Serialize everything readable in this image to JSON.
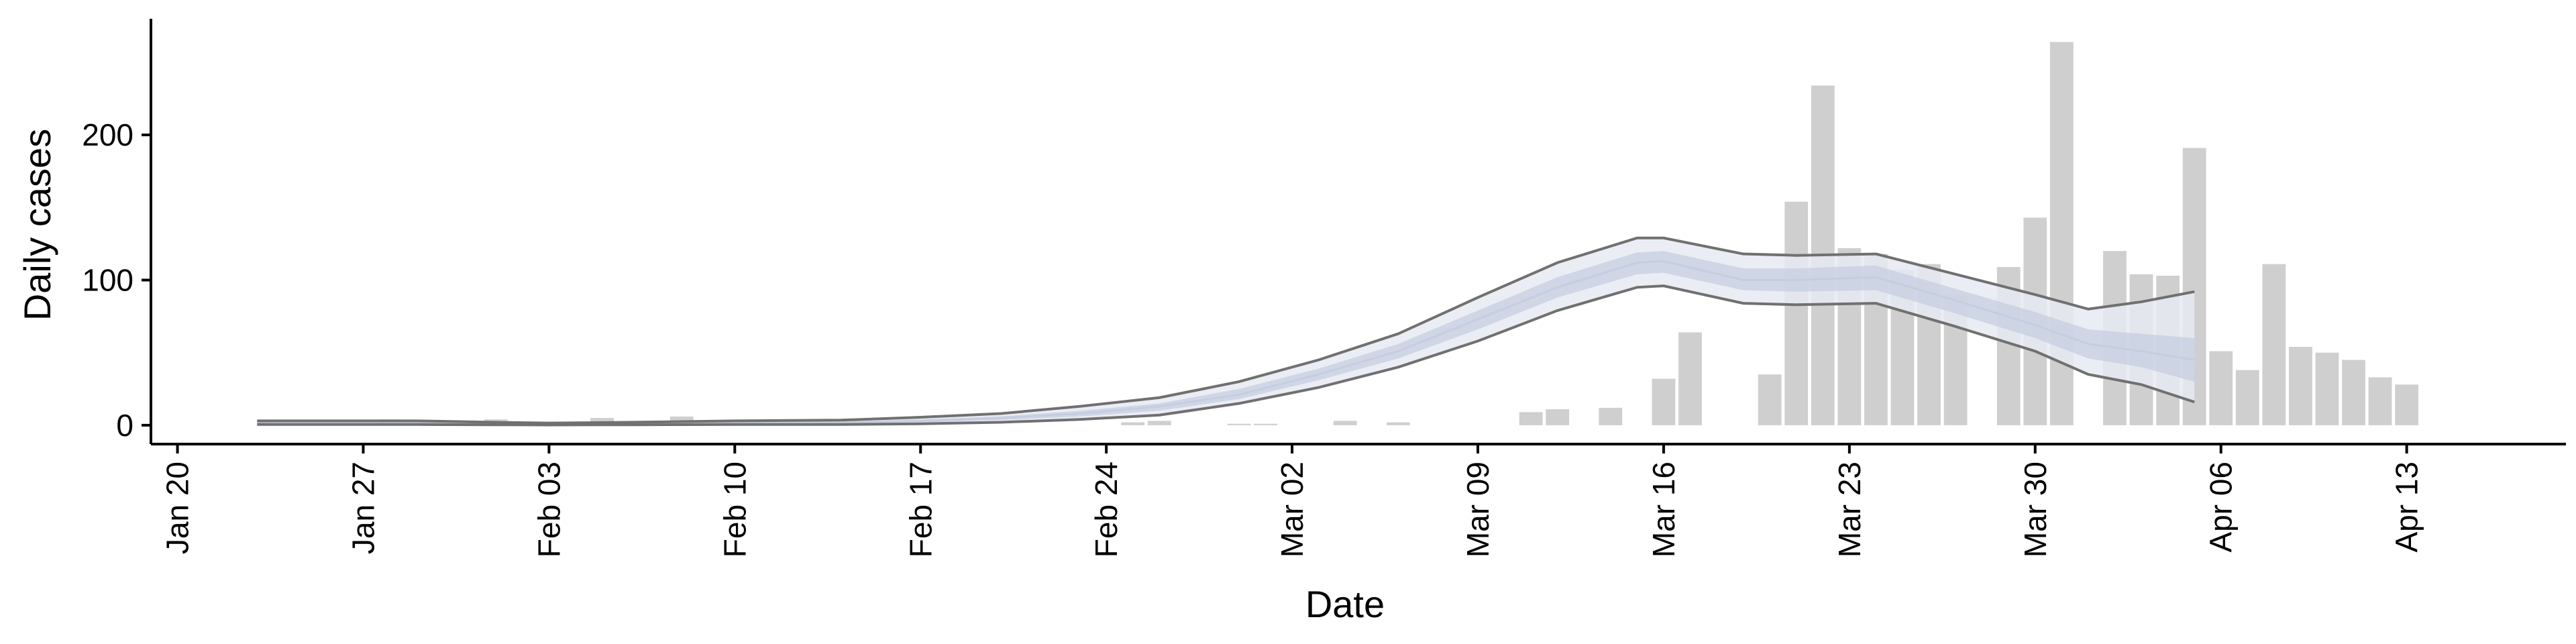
{
  "chart_data": {
    "type": "bar",
    "title": "",
    "xlabel": "Date",
    "ylabel": "Daily cases",
    "ylim": [
      -13,
      280
    ],
    "yticks": [
      0,
      100,
      200
    ],
    "xlim": [
      "2020-01-19",
      "2020-04-19"
    ],
    "xticks": [
      {
        "date": "2020-01-20",
        "label": "Jan 20"
      },
      {
        "date": "2020-01-27",
        "label": "Jan 27"
      },
      {
        "date": "2020-02-03",
        "label": "Feb 03"
      },
      {
        "date": "2020-02-10",
        "label": "Feb 10"
      },
      {
        "date": "2020-02-17",
        "label": "Feb 17"
      },
      {
        "date": "2020-02-24",
        "label": "Feb 24"
      },
      {
        "date": "2020-03-02",
        "label": "Mar 02"
      },
      {
        "date": "2020-03-09",
        "label": "Mar 09"
      },
      {
        "date": "2020-03-16",
        "label": "Mar 16"
      },
      {
        "date": "2020-03-23",
        "label": "Mar 23"
      },
      {
        "date": "2020-03-30",
        "label": "Mar 30"
      },
      {
        "date": "2020-04-06",
        "label": "Apr 06"
      },
      {
        "date": "2020-04-13",
        "label": "Apr 13"
      }
    ],
    "grid": false,
    "legend": "none",
    "colors": {
      "bars": "#cfcfcf",
      "band_outer": "#e8eaf2",
      "band_inner": "#c6cde0",
      "bound_lines": "#707070",
      "axis": "#000000"
    },
    "series": [
      {
        "kind": "bar",
        "points": [
          {
            "x": "2020-01-28",
            "y": 4
          },
          {
            "x": "2020-02-01",
            "y": 4
          },
          {
            "x": "2020-02-05",
            "y": 5
          },
          {
            "x": "2020-02-08",
            "y": 6
          },
          {
            "x": "2020-02-25",
            "y": 2
          },
          {
            "x": "2020-02-26",
            "y": 3
          },
          {
            "x": "2020-02-29",
            "y": 1
          },
          {
            "x": "2020-03-01",
            "y": 1
          },
          {
            "x": "2020-03-04",
            "y": 3
          },
          {
            "x": "2020-03-06",
            "y": 2
          },
          {
            "x": "2020-03-11",
            "y": 9
          },
          {
            "x": "2020-03-12",
            "y": 11
          },
          {
            "x": "2020-03-14",
            "y": 12
          },
          {
            "x": "2020-03-16",
            "y": 32
          },
          {
            "x": "2020-03-17",
            "y": 64
          },
          {
            "x": "2020-03-20",
            "y": 35
          },
          {
            "x": "2020-03-21",
            "y": 154
          },
          {
            "x": "2020-03-22",
            "y": 234
          },
          {
            "x": "2020-03-23",
            "y": 122
          },
          {
            "x": "2020-03-24",
            "y": 118
          },
          {
            "x": "2020-03-25",
            "y": 107
          },
          {
            "x": "2020-03-26",
            "y": 111
          },
          {
            "x": "2020-03-27",
            "y": 90
          },
          {
            "x": "2020-03-29",
            "y": 109
          },
          {
            "x": "2020-03-30",
            "y": 143
          },
          {
            "x": "2020-03-31",
            "y": 264
          },
          {
            "x": "2020-04-02",
            "y": 120
          },
          {
            "x": "2020-04-03",
            "y": 104
          },
          {
            "x": "2020-04-04",
            "y": 103
          },
          {
            "x": "2020-04-05",
            "y": 191
          },
          {
            "x": "2020-04-06",
            "y": 51
          },
          {
            "x": "2020-04-07",
            "y": 38
          },
          {
            "x": "2020-04-08",
            "y": 111
          },
          {
            "x": "2020-04-09",
            "y": 54
          },
          {
            "x": "2020-04-10",
            "y": 50
          },
          {
            "x": "2020-04-11",
            "y": 45
          },
          {
            "x": "2020-04-12",
            "y": 33
          },
          {
            "x": "2020-04-13",
            "y": 28
          }
        ]
      },
      {
        "kind": "interval",
        "points": [
          {
            "x": "2020-01-23",
            "lower": 0.5,
            "inner_lower": 1.0,
            "median": 1.5,
            "inner_upper": 2.0,
            "upper": 3
          },
          {
            "x": "2020-01-26",
            "lower": 0.5,
            "inner_lower": 1.0,
            "median": 1.5,
            "inner_upper": 2.0,
            "upper": 3
          },
          {
            "x": "2020-01-29",
            "lower": 0.5,
            "inner_lower": 1.0,
            "median": 1.5,
            "inner_upper": 2.0,
            "upper": 3
          },
          {
            "x": "2020-02-01",
            "lower": 0.3,
            "inner_lower": 0.7,
            "median": 1.0,
            "inner_upper": 1.5,
            "upper": 2
          },
          {
            "x": "2020-02-03",
            "lower": 0.2,
            "inner_lower": 0.5,
            "median": 0.8,
            "inner_upper": 1.0,
            "upper": 1.5
          },
          {
            "x": "2020-02-06",
            "lower": 0.3,
            "inner_lower": 0.6,
            "median": 1.0,
            "inner_upper": 1.5,
            "upper": 2
          },
          {
            "x": "2020-02-10",
            "lower": 0.5,
            "inner_lower": 1.0,
            "median": 1.5,
            "inner_upper": 2.0,
            "upper": 3
          },
          {
            "x": "2020-02-14",
            "lower": 0.5,
            "inner_lower": 1.2,
            "median": 2.0,
            "inner_upper": 2.5,
            "upper": 3.5
          },
          {
            "x": "2020-02-17",
            "lower": 1,
            "inner_lower": 2,
            "median": 3,
            "inner_upper": 4,
            "upper": 5.5
          },
          {
            "x": "2020-02-20",
            "lower": 2,
            "inner_lower": 3.5,
            "median": 5,
            "inner_upper": 6,
            "upper": 8
          },
          {
            "x": "2020-02-23",
            "lower": 4,
            "inner_lower": 6,
            "median": 8,
            "inner_upper": 10,
            "upper": 13
          },
          {
            "x": "2020-02-26",
            "lower": 7,
            "inner_lower": 10,
            "median": 13,
            "inner_upper": 15,
            "upper": 19
          },
          {
            "x": "2020-02-29",
            "lower": 15,
            "inner_lower": 18,
            "median": 21,
            "inner_upper": 25,
            "upper": 30
          },
          {
            "x": "2020-03-03",
            "lower": 26,
            "inner_lower": 31,
            "median": 35,
            "inner_upper": 39,
            "upper": 45
          },
          {
            "x": "2020-03-06",
            "lower": 40,
            "inner_lower": 46,
            "median": 51,
            "inner_upper": 56,
            "upper": 63
          },
          {
            "x": "2020-03-09",
            "lower": 58,
            "inner_lower": 66,
            "median": 73,
            "inner_upper": 79,
            "upper": 88
          },
          {
            "x": "2020-03-12",
            "lower": 79,
            "inner_lower": 88,
            "median": 95,
            "inner_upper": 102,
            "upper": 112
          },
          {
            "x": "2020-03-15",
            "lower": 95,
            "inner_lower": 104,
            "median": 112,
            "inner_upper": 119,
            "upper": 129
          },
          {
            "x": "2020-03-16",
            "lower": 96,
            "inner_lower": 105,
            "median": 113,
            "inner_upper": 120,
            "upper": 129
          },
          {
            "x": "2020-03-19",
            "lower": 84,
            "inner_lower": 93,
            "median": 100,
            "inner_upper": 108,
            "upper": 118
          },
          {
            "x": "2020-03-21",
            "lower": 83,
            "inner_lower": 92,
            "median": 100,
            "inner_upper": 108,
            "upper": 117
          },
          {
            "x": "2020-03-24",
            "lower": 84,
            "inner_lower": 93,
            "median": 102,
            "inner_upper": 110,
            "upper": 118
          },
          {
            "x": "2020-03-27",
            "lower": 68,
            "inner_lower": 77,
            "median": 86,
            "inner_upper": 94,
            "upper": 104
          },
          {
            "x": "2020-03-30",
            "lower": 51,
            "inner_lower": 60,
            "median": 69,
            "inner_upper": 78,
            "upper": 90
          },
          {
            "x": "2020-04-01",
            "lower": 35,
            "inner_lower": 46,
            "median": 56,
            "inner_upper": 66,
            "upper": 80
          },
          {
            "x": "2020-04-03",
            "lower": 28,
            "inner_lower": 40,
            "median": 51,
            "inner_upper": 63,
            "upper": 85
          },
          {
            "x": "2020-04-05",
            "lower": 16,
            "inner_lower": 30,
            "median": 45,
            "inner_upper": 60,
            "upper": 92
          }
        ]
      }
    ]
  }
}
